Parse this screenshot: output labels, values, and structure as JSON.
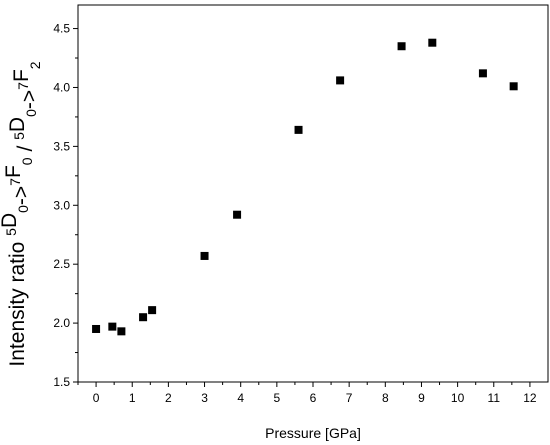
{
  "chart_data": {
    "type": "scatter",
    "title": "",
    "xlabel": "Pressure [GPa]",
    "ylabel_parts": [
      {
        "t": "Intensity ratio ",
        "s": "n"
      },
      {
        "t": "5",
        "s": "sup"
      },
      {
        "t": "D",
        "s": "n"
      },
      {
        "t": "0",
        "s": "sub"
      },
      {
        "t": "->",
        "s": "n"
      },
      {
        "t": "7",
        "s": "sup"
      },
      {
        "t": "F",
        "s": "n"
      },
      {
        "t": "0",
        "s": "sub"
      },
      {
        "t": " / ",
        "s": "n"
      },
      {
        "t": "5",
        "s": "sup"
      },
      {
        "t": "D",
        "s": "n"
      },
      {
        "t": "0",
        "s": "sub"
      },
      {
        "t": "->",
        "s": "n"
      },
      {
        "t": "7",
        "s": "sup"
      },
      {
        "t": "F",
        "s": "n"
      },
      {
        "t": "2",
        "s": "sub"
      }
    ],
    "xlim": [
      -0.5,
      12.5
    ],
    "ylim": [
      1.5,
      4.7
    ],
    "xticks": [
      "0",
      "1",
      "2",
      "3",
      "4",
      "5",
      "6",
      "7",
      "8",
      "9",
      "10",
      "11",
      "12"
    ],
    "yticks": [
      "1.5",
      "2.0",
      "2.5",
      "3.0",
      "3.5",
      "4.0",
      "4.5"
    ],
    "grid": false,
    "marker": "square",
    "marker_color": "#000000",
    "points": [
      {
        "x": 0.0,
        "y": 1.95
      },
      {
        "x": 0.45,
        "y": 1.97
      },
      {
        "x": 0.7,
        "y": 1.93
      },
      {
        "x": 1.3,
        "y": 2.05
      },
      {
        "x": 1.55,
        "y": 2.11
      },
      {
        "x": 3.0,
        "y": 2.57
      },
      {
        "x": 3.9,
        "y": 2.92
      },
      {
        "x": 5.6,
        "y": 3.64
      },
      {
        "x": 6.75,
        "y": 4.06
      },
      {
        "x": 8.45,
        "y": 4.35
      },
      {
        "x": 9.3,
        "y": 4.38
      },
      {
        "x": 10.7,
        "y": 4.12
      },
      {
        "x": 11.55,
        "y": 4.01
      }
    ]
  }
}
